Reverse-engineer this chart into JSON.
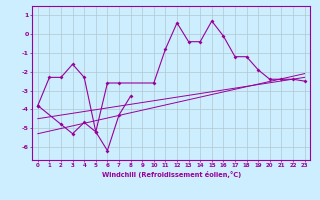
{
  "xlabel": "Windchill (Refroidissement éolien,°C)",
  "bg_color": "#cceeff",
  "line_color": "#990099",
  "grid_color": "#b0c8d0",
  "xlim": [
    -0.5,
    23.5
  ],
  "ylim": [
    -6.7,
    1.5
  ],
  "yticks": [
    1,
    0,
    -1,
    -2,
    -3,
    -4,
    -5,
    -6
  ],
  "xticks": [
    0,
    1,
    2,
    3,
    4,
    5,
    6,
    7,
    8,
    9,
    10,
    11,
    12,
    13,
    14,
    15,
    16,
    17,
    18,
    19,
    20,
    21,
    22,
    23
  ],
  "series1_x": [
    0,
    1,
    2,
    3,
    4,
    5,
    6,
    7,
    10,
    11,
    12,
    13,
    14,
    15,
    16,
    17,
    18,
    19,
    20,
    21,
    22,
    23
  ],
  "series1_y": [
    -3.8,
    -2.3,
    -2.3,
    -1.6,
    -2.3,
    -5.2,
    -2.6,
    -2.6,
    -2.6,
    -0.8,
    0.6,
    -0.4,
    -0.4,
    0.7,
    -0.1,
    -1.2,
    -1.2,
    -1.9,
    -2.4,
    -2.4,
    -2.4,
    -2.5
  ],
  "series2_x": [
    0,
    2,
    3,
    4,
    5,
    6,
    7,
    8
  ],
  "series2_y": [
    -3.8,
    -4.8,
    -5.3,
    -4.7,
    -5.2,
    -6.2,
    -4.3,
    -3.3
  ],
  "line3_x": [
    0,
    23
  ],
  "line3_y": [
    -4.5,
    -2.3
  ],
  "line4_x": [
    0,
    23
  ],
  "line4_y": [
    -5.3,
    -2.1
  ]
}
